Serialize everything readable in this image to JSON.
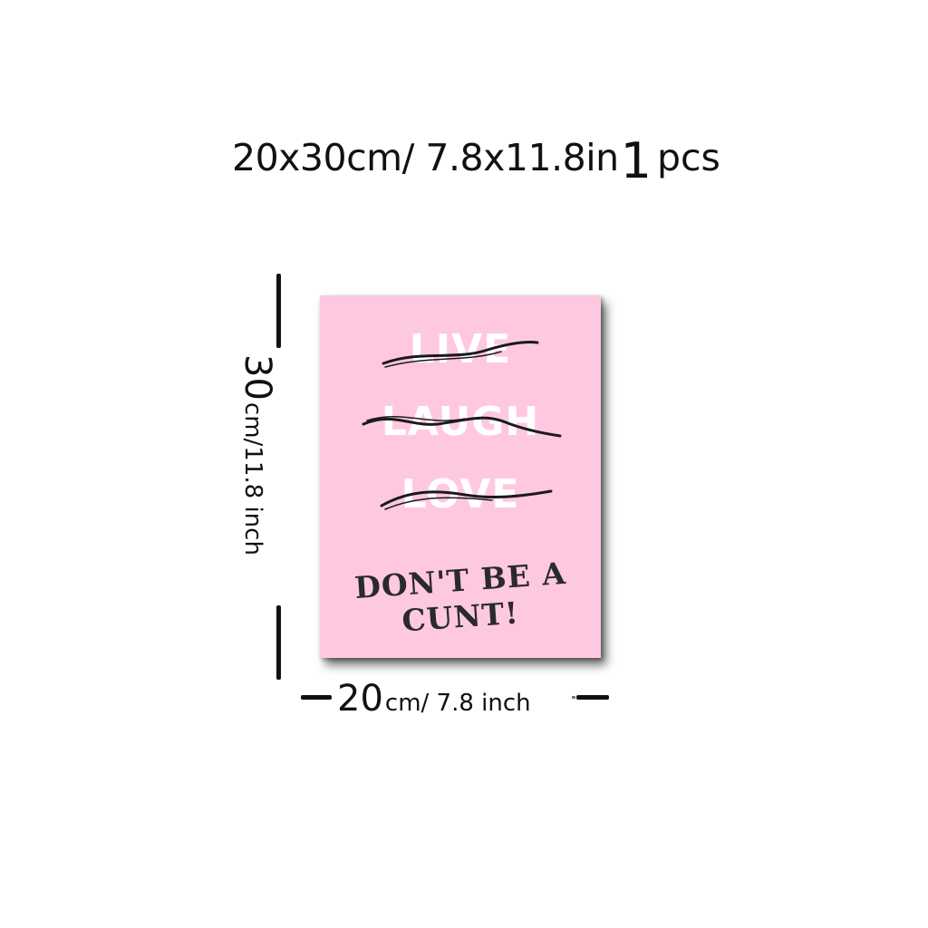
{
  "headline": {
    "size_text": "20x30cm/ 7.8x11.8in",
    "quantity_number": "1",
    "quantity_unit": "pcs"
  },
  "height_dimension": {
    "number": "30",
    "unit_text": "cm/11.8 inch"
  },
  "width_dimension": {
    "number": "20",
    "unit_text": "cm/ 7.8 inch"
  },
  "poster": {
    "background_color": "#ffc8e1",
    "crossed_words": [
      "LIVE",
      "LAUGH",
      "LOVE"
    ],
    "slogan_lines": [
      "DON'T BE A",
      "CUNT!"
    ]
  }
}
